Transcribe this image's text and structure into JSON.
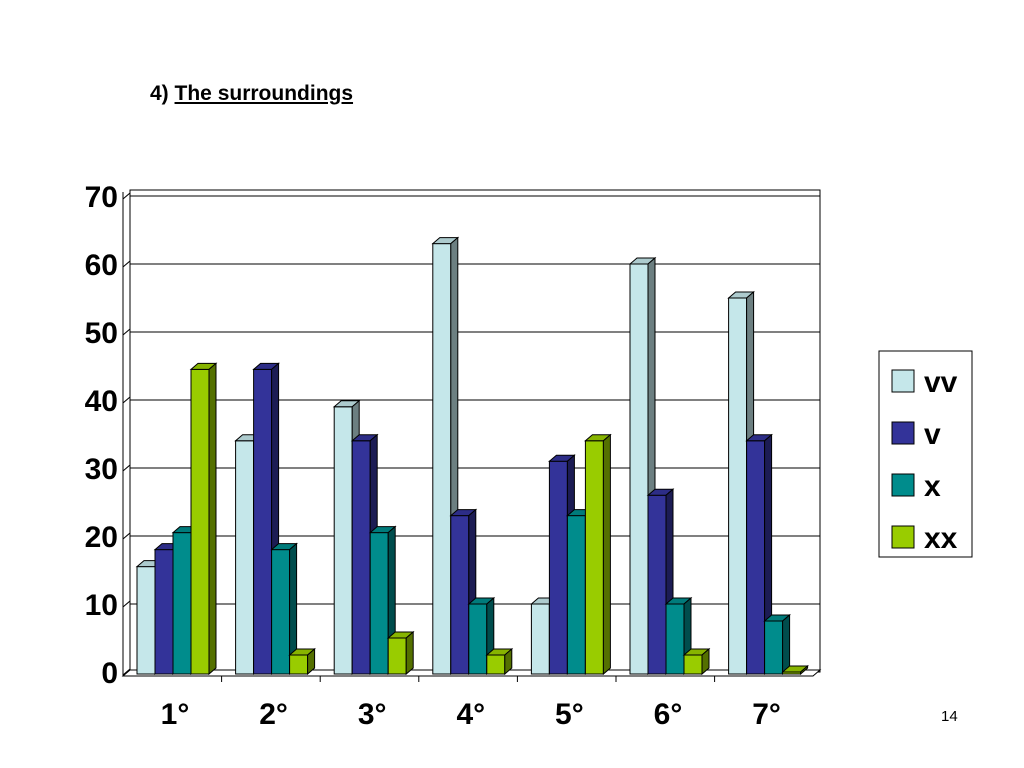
{
  "slide": {
    "title_number": "4)",
    "title_text": "The surroundings",
    "page_number": "14"
  },
  "chart_data": {
    "type": "bar",
    "categories": [
      "1°",
      "2°",
      "3°",
      "4°",
      "5°",
      "6°",
      "7°"
    ],
    "series": [
      {
        "name": "vv",
        "color": "#C5E7EA",
        "values": [
          15.5,
          34,
          39,
          63,
          10,
          60,
          55
        ]
      },
      {
        "name": "v",
        "color": "#333399",
        "values": [
          18,
          44.5,
          34,
          23,
          31,
          26,
          34
        ]
      },
      {
        "name": "x",
        "color": "#008C8C",
        "values": [
          20.5,
          18,
          20.5,
          10,
          23,
          10,
          7.5
        ]
      },
      {
        "name": "xx",
        "color": "#99CC00",
        "values": [
          44.5,
          2.5,
          5,
          2.5,
          34,
          2.5,
          0
        ]
      }
    ],
    "ylim": [
      0,
      70
    ],
    "yticks": [
      "0",
      "10",
      "20",
      "30",
      "40",
      "50",
      "60",
      "70"
    ],
    "grid": true,
    "legend_position": "right",
    "xlabel": "",
    "ylabel": ""
  }
}
